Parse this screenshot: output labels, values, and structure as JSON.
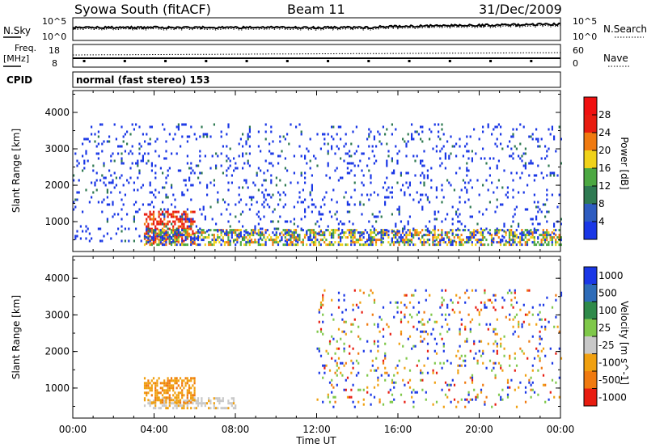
{
  "header": {
    "station": "Syowa South (fitACF)",
    "beam": "Beam 11",
    "date": "31/Dec/2009"
  },
  "noise_panel": {
    "left_label": "N.Sky",
    "right_label": "N.Search",
    "left_ticks": [
      "10^5",
      "10^0"
    ],
    "right_ticks": [
      "10^5",
      "10^0"
    ]
  },
  "freq_panel": {
    "left_label_1": "Freq.",
    "left_label_2": "[MHz]",
    "right_label": "Nave",
    "left_ticks": [
      "18",
      "8"
    ],
    "right_ticks": [
      "60",
      "0"
    ]
  },
  "cpid_panel": {
    "left_label": "CPID",
    "text": "normal (fast stereo) 153"
  },
  "axes": {
    "ylabel": "Slant Range [km]",
    "xlabel": "Time UT",
    "y_ticks": [
      "1000",
      "2000",
      "3000",
      "4000"
    ],
    "x_ticks": [
      "00:00",
      "04:00",
      "08:00",
      "12:00",
      "16:00",
      "20:00",
      "00:00"
    ]
  },
  "chart_data": [
    {
      "type": "heatmap",
      "name": "power",
      "xlabel": "Time UT",
      "ylabel": "Slant Range [km]",
      "xlim_hours": [
        0,
        24
      ],
      "ylim_km": [
        180,
        4600
      ],
      "colorbar": {
        "label": "Power [dB]",
        "ticks": [
          "4",
          "8",
          "12",
          "16",
          "20",
          "24",
          "28"
        ],
        "colors": [
          "#1a37e6",
          "#2e5cc0",
          "#2f7a52",
          "#4ca842",
          "#f0d21a",
          "#f07a10",
          "#e81c10",
          "#f01010"
        ]
      },
      "features": [
        {
          "label": "strong echo band",
          "time_start": "03:30",
          "time_end": "06:00",
          "range_km": [
            400,
            1300
          ],
          "dominant_power_db": 28
        },
        {
          "label": "persistent near-range echoes",
          "time_start": "03:30",
          "time_end": "24:00",
          "range_km": [
            400,
            800
          ],
          "dominant_power_db": 12
        },
        {
          "label": "scattered weak echoes",
          "time_start": "00:00",
          "time_end": "24:00",
          "range_km": [
            500,
            3700
          ],
          "dominant_power_db": 4
        }
      ]
    },
    {
      "type": "heatmap",
      "name": "velocity",
      "xlabel": "Time UT",
      "ylabel": "Slant Range [km]",
      "xlim_hours": [
        0,
        24
      ],
      "ylim_km": [
        180,
        4600
      ],
      "colorbar": {
        "label": "Velocity [m s^-1]",
        "ticks": [
          "1000",
          "500",
          "100",
          "25",
          "-25",
          "-100",
          "-500",
          "-1000"
        ],
        "colors": [
          "#1a37e6",
          "#2e6cb8",
          "#2f8a4a",
          "#7fc84a",
          "#c8c8c8",
          "#f0a010",
          "#f07a10",
          "#e81c10"
        ]
      },
      "features": [
        {
          "label": "ground scatter (grey)",
          "time_start": "03:30",
          "time_end": "08:00",
          "range_km": [
            450,
            750
          ],
          "velocity_ms": 0
        },
        {
          "label": "orange slow flow",
          "time_start": "03:30",
          "time_end": "06:00",
          "range_km": [
            600,
            1300
          ],
          "velocity_ms": -100
        },
        {
          "label": "mixed scattered flows",
          "time_start": "12:00",
          "time_end": "24:00",
          "range_km": [
            500,
            3700
          ],
          "velocity_ms": 100
        }
      ]
    }
  ]
}
